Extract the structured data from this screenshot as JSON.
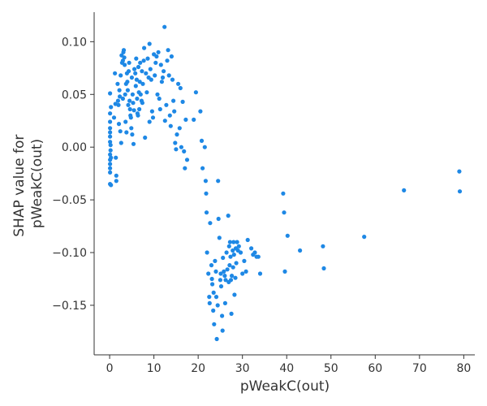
{
  "chart_data": {
    "type": "scatter",
    "title": "",
    "xlabel": "pWeakC(out)",
    "ylabel_lines": [
      "SHAP value for",
      "pWeakC(out)"
    ],
    "xlim": [
      -3.5,
      82.5
    ],
    "ylim": [
      -0.197,
      0.128
    ],
    "xticks": [
      0,
      10,
      20,
      30,
      40,
      50,
      60,
      70,
      80
    ],
    "xtick_labels": [
      "0",
      "10",
      "20",
      "30",
      "40",
      "50",
      "60",
      "70",
      "80"
    ],
    "yticks": [
      -0.15,
      -0.1,
      -0.05,
      0.0,
      0.05,
      0.1
    ],
    "ytick_labels": [
      "−0.15",
      "−0.10",
      "−0.05",
      "0.00",
      "0.05",
      "0.10"
    ],
    "grid": false,
    "point_color": "#1e88e5",
    "points": [
      [
        0.1,
        0.051
      ],
      [
        0.1,
        0.032
      ],
      [
        0.1,
        0.024
      ],
      [
        0.1,
        0.018
      ],
      [
        0.1,
        0.014
      ],
      [
        0.1,
        0.01
      ],
      [
        0.1,
        0.005
      ],
      [
        0.1,
        -0.007
      ],
      [
        0.1,
        -0.012
      ],
      [
        0.1,
        -0.016
      ],
      [
        0.1,
        -0.02
      ],
      [
        0.1,
        -0.024
      ],
      [
        0.1,
        -0.035
      ],
      [
        0.2,
        0.002
      ],
      [
        0.2,
        -0.003
      ],
      [
        0.3,
        -0.01
      ],
      [
        0.3,
        -0.036
      ],
      [
        0.3,
        0.038
      ],
      [
        1.0,
        0.028
      ],
      [
        1.2,
        0.07
      ],
      [
        1.3,
        0.041
      ],
      [
        1.4,
        -0.01
      ],
      [
        1.5,
        -0.027
      ],
      [
        1.5,
        -0.032
      ],
      [
        1.8,
        0.06
      ],
      [
        1.9,
        0.044
      ],
      [
        2.0,
        0.04
      ],
      [
        2.1,
        0.022
      ],
      [
        2.2,
        0.054
      ],
      [
        2.3,
        0.048
      ],
      [
        2.4,
        0.015
      ],
      [
        2.5,
        0.068
      ],
      [
        2.6,
        0.004
      ],
      [
        2.7,
        0.087
      ],
      [
        2.8,
        0.08
      ],
      [
        3.0,
        0.082
      ],
      [
        3.0,
        0.046
      ],
      [
        3.1,
        0.09
      ],
      [
        3.2,
        0.092
      ],
      [
        3.3,
        0.085
      ],
      [
        3.4,
        0.078
      ],
      [
        3.5,
        0.05
      ],
      [
        3.6,
        0.024
      ],
      [
        3.7,
        0.06
      ],
      [
        3.8,
        0.014
      ],
      [
        3.9,
        0.07
      ],
      [
        4.0,
        0.062
      ],
      [
        4.1,
        0.054
      ],
      [
        4.2,
        0.04
      ],
      [
        4.3,
        0.072
      ],
      [
        4.4,
        0.08
      ],
      [
        4.5,
        0.044
      ],
      [
        4.6,
        0.036
      ],
      [
        4.7,
        0.03
      ],
      [
        4.8,
        0.028
      ],
      [
        4.9,
        0.018
      ],
      [
        5.0,
        0.066
      ],
      [
        5.1,
        0.012
      ],
      [
        5.2,
        0.05
      ],
      [
        5.3,
        0.042
      ],
      [
        5.4,
        0.003
      ],
      [
        5.5,
        0.035
      ],
      [
        5.6,
        0.074
      ],
      [
        5.8,
        0.07
      ],
      [
        5.9,
        0.058
      ],
      [
        6.0,
        0.084
      ],
      [
        6.1,
        0.064
      ],
      [
        6.2,
        0.046
      ],
      [
        6.3,
        0.032
      ],
      [
        6.4,
        0.03
      ],
      [
        6.5,
        0.076
      ],
      [
        6.6,
        0.052
      ],
      [
        6.7,
        0.036
      ],
      [
        6.8,
        0.062
      ],
      [
        6.9,
        0.08
      ],
      [
        7.0,
        0.05
      ],
      [
        7.2,
        0.044
      ],
      [
        7.3,
        0.072
      ],
      [
        7.4,
        0.042
      ],
      [
        7.5,
        0.06
      ],
      [
        7.7,
        0.082
      ],
      [
        7.8,
        0.094
      ],
      [
        8.0,
        0.009
      ],
      [
        8.2,
        0.07
      ],
      [
        8.4,
        0.052
      ],
      [
        8.6,
        0.084
      ],
      [
        8.8,
        0.066
      ],
      [
        9.0,
        0.098
      ],
      [
        9.0,
        0.024
      ],
      [
        9.2,
        0.074
      ],
      [
        9.4,
        0.064
      ],
      [
        9.6,
        0.034
      ],
      [
        9.8,
        0.028
      ],
      [
        10.0,
        0.088
      ],
      [
        10.2,
        0.068
      ],
      [
        10.4,
        0.08
      ],
      [
        10.6,
        0.086
      ],
      [
        10.8,
        0.05
      ],
      [
        11.0,
        0.09
      ],
      [
        11.2,
        0.046
      ],
      [
        11.4,
        0.036
      ],
      [
        11.6,
        0.078
      ],
      [
        11.8,
        0.062
      ],
      [
        12.0,
        0.066
      ],
      [
        12.2,
        0.072
      ],
      [
        12.4,
        0.114
      ],
      [
        12.5,
        0.025
      ],
      [
        12.8,
        0.04
      ],
      [
        13.0,
        0.082
      ],
      [
        13.2,
        0.092
      ],
      [
        13.4,
        0.068
      ],
      [
        13.6,
        0.03
      ],
      [
        13.8,
        0.02
      ],
      [
        14.0,
        0.086
      ],
      [
        14.2,
        0.064
      ],
      [
        14.4,
        0.044
      ],
      [
        14.6,
        0.034
      ],
      [
        14.8,
        0.004
      ],
      [
        15.0,
        -0.002
      ],
      [
        15.2,
        0.012
      ],
      [
        15.5,
        0.06
      ],
      [
        15.8,
        0.018
      ],
      [
        16.0,
        0.056
      ],
      [
        16.2,
        0.0
      ],
      [
        16.5,
        0.043
      ],
      [
        16.8,
        -0.004
      ],
      [
        17.0,
        -0.02
      ],
      [
        17.2,
        0.026
      ],
      [
        17.5,
        -0.012
      ],
      [
        19.0,
        0.026
      ],
      [
        19.5,
        0.052
      ],
      [
        20.5,
        0.034
      ],
      [
        20.8,
        0.006
      ],
      [
        21.0,
        -0.02
      ],
      [
        21.5,
        0.0
      ],
      [
        21.7,
        -0.032
      ],
      [
        21.8,
        -0.044
      ],
      [
        21.9,
        -0.062
      ],
      [
        22.0,
        -0.1
      ],
      [
        22.3,
        -0.12
      ],
      [
        22.5,
        -0.142
      ],
      [
        22.6,
        -0.148
      ],
      [
        22.7,
        -0.072
      ],
      [
        23.0,
        -0.112
      ],
      [
        23.1,
        -0.125
      ],
      [
        23.2,
        -0.13
      ],
      [
        23.4,
        -0.155
      ],
      [
        23.5,
        -0.138
      ],
      [
        23.6,
        -0.168
      ],
      [
        23.8,
        -0.108
      ],
      [
        24.0,
        -0.118
      ],
      [
        24.1,
        -0.142
      ],
      [
        24.2,
        -0.182
      ],
      [
        24.4,
        -0.15
      ],
      [
        24.5,
        -0.032
      ],
      [
        24.6,
        -0.068
      ],
      [
        24.8,
        -0.086
      ],
      [
        25.0,
        -0.126
      ],
      [
        25.1,
        -0.12
      ],
      [
        25.2,
        -0.132
      ],
      [
        25.4,
        -0.16
      ],
      [
        25.5,
        -0.174
      ],
      [
        25.6,
        -0.105
      ],
      [
        25.8,
        -0.118
      ],
      [
        26.0,
        -0.122
      ],
      [
        26.1,
        -0.148
      ],
      [
        26.2,
        -0.126
      ],
      [
        26.4,
        -0.1
      ],
      [
        26.6,
        -0.116
      ],
      [
        26.8,
        -0.065
      ],
      [
        26.9,
        -0.128
      ],
      [
        27.0,
        -0.094
      ],
      [
        27.1,
        -0.112
      ],
      [
        27.2,
        -0.09
      ],
      [
        27.3,
        -0.104
      ],
      [
        27.4,
        -0.126
      ],
      [
        27.5,
        -0.158
      ],
      [
        27.6,
        -0.122
      ],
      [
        27.8,
        -0.098
      ],
      [
        27.9,
        -0.114
      ],
      [
        28.0,
        -0.09
      ],
      [
        28.1,
        -0.102
      ],
      [
        28.2,
        -0.14
      ],
      [
        28.4,
        -0.124
      ],
      [
        28.5,
        -0.096
      ],
      [
        28.6,
        -0.11
      ],
      [
        28.8,
        -0.09
      ],
      [
        29.0,
        -0.098
      ],
      [
        29.2,
        -0.094
      ],
      [
        29.6,
        -0.1
      ],
      [
        30.0,
        -0.12
      ],
      [
        30.4,
        -0.108
      ],
      [
        30.8,
        -0.118
      ],
      [
        31.2,
        -0.088
      ],
      [
        32.0,
        -0.096
      ],
      [
        32.4,
        -0.102
      ],
      [
        32.8,
        -0.1
      ],
      [
        33.2,
        -0.104
      ],
      [
        33.6,
        -0.104
      ],
      [
        34.0,
        -0.12
      ],
      [
        39.2,
        -0.044
      ],
      [
        39.4,
        -0.062
      ],
      [
        39.6,
        -0.118
      ],
      [
        40.2,
        -0.084
      ],
      [
        43.0,
        -0.098
      ],
      [
        48.2,
        -0.094
      ],
      [
        48.4,
        -0.115
      ],
      [
        57.5,
        -0.085
      ],
      [
        66.5,
        -0.041
      ],
      [
        79.0,
        -0.023
      ],
      [
        79.1,
        -0.042
      ]
    ]
  }
}
